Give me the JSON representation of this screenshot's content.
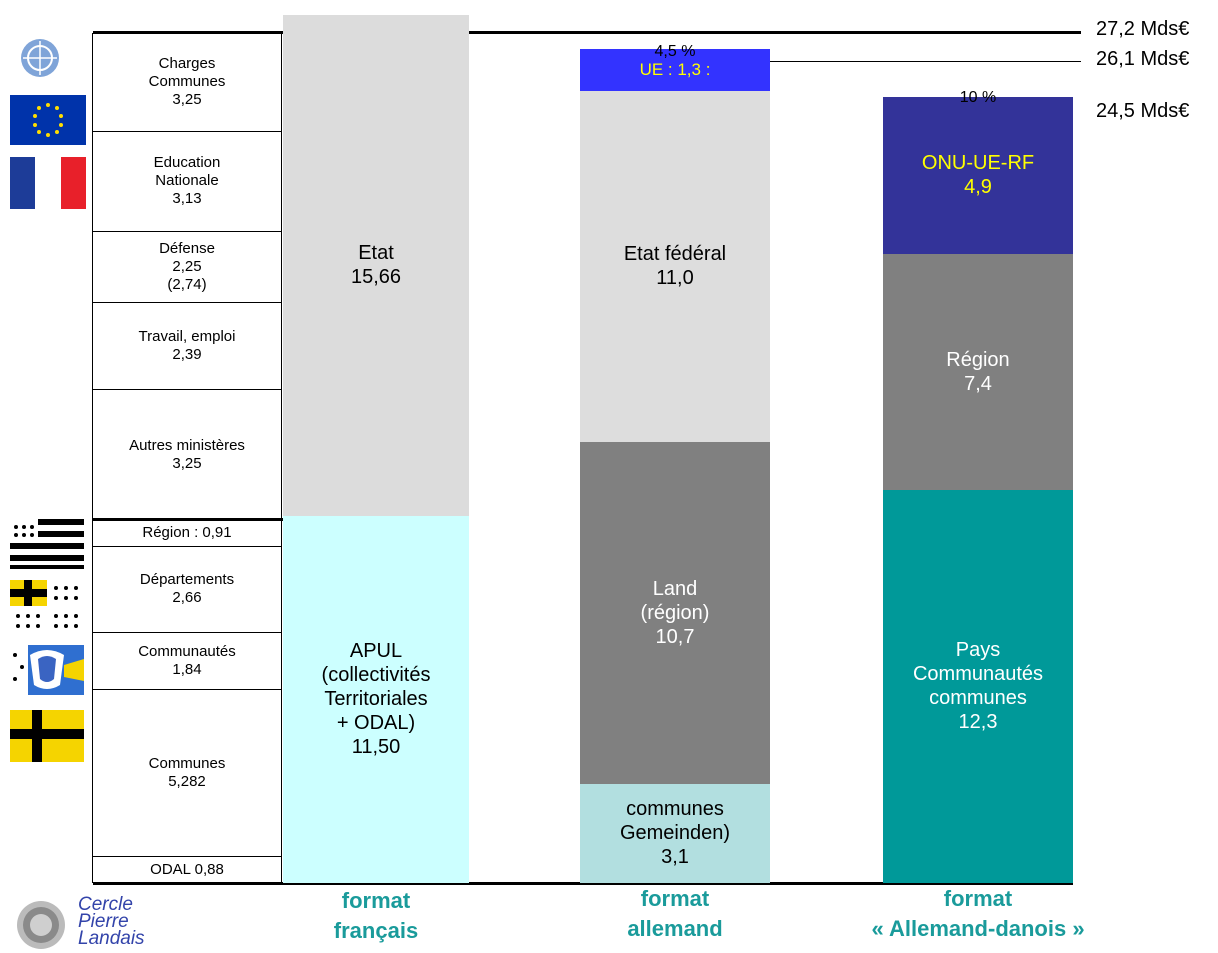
{
  "chart_data": {
    "type": "bar",
    "stacked": true,
    "categories": [
      "format français",
      "format allemand",
      "format « Allemand-danois »"
    ],
    "totals": [
      "27,2 Mds€",
      "26,1 Mds€",
      "24,5 Mds€"
    ],
    "french_detail": [
      {
        "label": "Charges\nCommunes\n3,25",
        "value": 3.25
      },
      {
        "label": "Education\nNationale\n3,13",
        "value": 3.13
      },
      {
        "label": "Défense\n2,25\n(2,74)",
        "value": 2.25
      },
      {
        "label": "Travail, emploi\n2,39",
        "value": 2.39
      },
      {
        "label": "Autres ministères\n3,25",
        "value": 3.25
      },
      {
        "label": "Région : 0,91",
        "value": 0.91
      },
      {
        "label": "Départements\n2,66",
        "value": 2.66
      },
      {
        "label": "Communautés\n1,84",
        "value": 1.84
      },
      {
        "label": "Communes\n5,282",
        "value": 5.282
      },
      {
        "label": "ODAL 0,88",
        "value": 0.88
      }
    ],
    "series": [
      {
        "category": "format français",
        "segments": [
          {
            "label": "Etat\n15,66",
            "value": 15.66,
            "color": "#dcdcdc",
            "text_color": "#000000"
          },
          {
            "label": "APUL\n(collectivités\nTerritoriales\n+ ODAL)\n11,50",
            "value": 11.5,
            "color": "#ccffff",
            "text_color": "#000000"
          }
        ]
      },
      {
        "category": "format allemand",
        "percent_label": "4,5 %",
        "segments": [
          {
            "label": "UE : 1,3 :",
            "value": 1.3,
            "color": "#3333ff",
            "text_color": "#ffff00"
          },
          {
            "label": "Etat fédéral\n11,0",
            "value": 11.0,
            "color": "#dddddd",
            "text_color": "#000000"
          },
          {
            "label": "Land\n(région)\n10,7",
            "value": 10.7,
            "color": "#808080",
            "text_color": "#ffffff"
          },
          {
            "label": "communes\nGemeinden)\n3,1",
            "value": 3.1,
            "color": "#b2dfe0",
            "text_color": "#000000"
          }
        ]
      },
      {
        "category": "format « Allemand-danois »",
        "percent_label": "10 %",
        "segments": [
          {
            "label": "ONU-UE-RF\n4,9",
            "value": 4.9,
            "color": "#333399",
            "text_color": "#ffff00"
          },
          {
            "label": "Région\n7,4",
            "value": 7.4,
            "color": "#808080",
            "text_color": "#ffffff"
          },
          {
            "label": "Pays\nCommunautés\ncommunes\n12,3",
            "value": 12.3,
            "color": "#009999",
            "text_color": "#ffffff"
          }
        ]
      }
    ]
  },
  "formats": [
    "format\nfrançais",
    "format\nallemand",
    "format\n« Allemand-danois »"
  ],
  "logo_text": "Cercle\nPierre\nLandais",
  "colors": {
    "accent": "#1a9b9b",
    "logo_text": "#3344aa"
  }
}
